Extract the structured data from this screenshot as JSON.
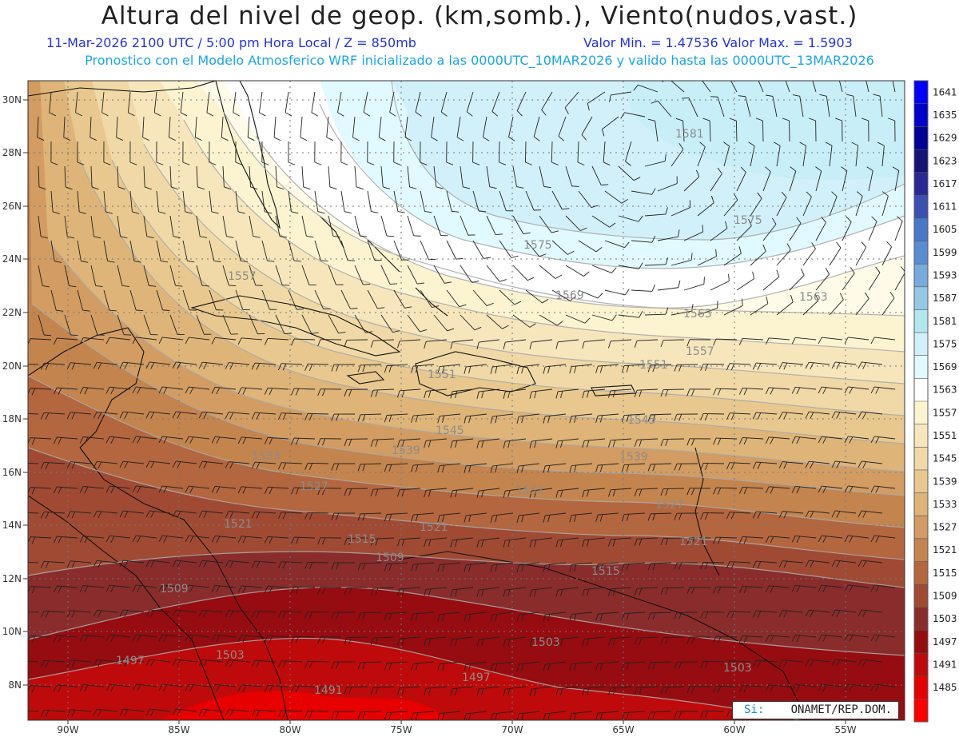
{
  "title": "Altura del nivel de geop. (km,somb.), Viento(nudos,vast.)",
  "subtitle_date": "11-Mar-2026  2100 UTC / 5:00 pm Hora Local / Z = 850mb",
  "subtitle_minmax": "Valor Min. = 1.47536  Valor Max. = 1.5903",
  "subtitle_model": "Pronostico con el Modelo Atmosferico WRF inicializado a las 0000UTC_10MAR2026 y valido hasta las  0000UTC_13MAR2026",
  "footer_left": "Si:",
  "footer_right": "ONAMET/REP.DOM.",
  "lat_labels": [
    "30N",
    "28N",
    "26N",
    "24N",
    "22N",
    "20N",
    "18N",
    "16N",
    "14N",
    "12N",
    "10N",
    "8N"
  ],
  "lon_labels": [
    "90W",
    "85W",
    "80W",
    "75W",
    "70W",
    "65W",
    "60W",
    "55W"
  ],
  "colorbar_levels": [
    "1641",
    "1635",
    "1629",
    "1623",
    "1617",
    "1611",
    "1605",
    "1599",
    "1593",
    "1587",
    "1581",
    "1575",
    "1569",
    "1563",
    "1557",
    "1551",
    "1545",
    "1539",
    "1533",
    "1527",
    "1521",
    "1515",
    "1509",
    "1503",
    "1497",
    "1491",
    "1485"
  ],
  "colorbar_colors": [
    "#0000ff",
    "#0000cc",
    "#000099",
    "#141478",
    "#282896",
    "#3c50b4",
    "#4678c8",
    "#5a8cd2",
    "#78aadc",
    "#96c8e6",
    "#b4e6f0",
    "#d2f0fa",
    "#e1faff",
    "#ffffff",
    "#fcf4d0",
    "#f7e6bc",
    "#f0d9a6",
    "#e8c88e",
    "#deb478",
    "#d29c62",
    "#c4844e",
    "#b4663e",
    "#a04a34",
    "#8a2c2c",
    "#960c10",
    "#be0a0a",
    "#e60000",
    "#ff0000"
  ],
  "contour_labels": [
    {
      "text": "1581"
    },
    {
      "text": "1575"
    },
    {
      "text": "1575"
    },
    {
      "text": "1569"
    },
    {
      "text": "1563"
    },
    {
      "text": "1563"
    },
    {
      "text": "1557"
    },
    {
      "text": "1557"
    },
    {
      "text": "1551"
    },
    {
      "text": "1551"
    },
    {
      "text": "1545"
    },
    {
      "text": "1545"
    },
    {
      "text": "1539"
    },
    {
      "text": "1539"
    },
    {
      "text": "1533"
    },
    {
      "text": "1533"
    },
    {
      "text": "1527"
    },
    {
      "text": "1527"
    },
    {
      "text": "1521"
    },
    {
      "text": "1521"
    },
    {
      "text": "1521"
    },
    {
      "text": "1515"
    },
    {
      "text": "1515"
    },
    {
      "text": "1509"
    },
    {
      "text": "1509"
    },
    {
      "text": "1503"
    },
    {
      "text": "1503"
    },
    {
      "text": "1503"
    },
    {
      "text": "1497"
    },
    {
      "text": "1497"
    },
    {
      "text": "1491"
    }
  ]
}
